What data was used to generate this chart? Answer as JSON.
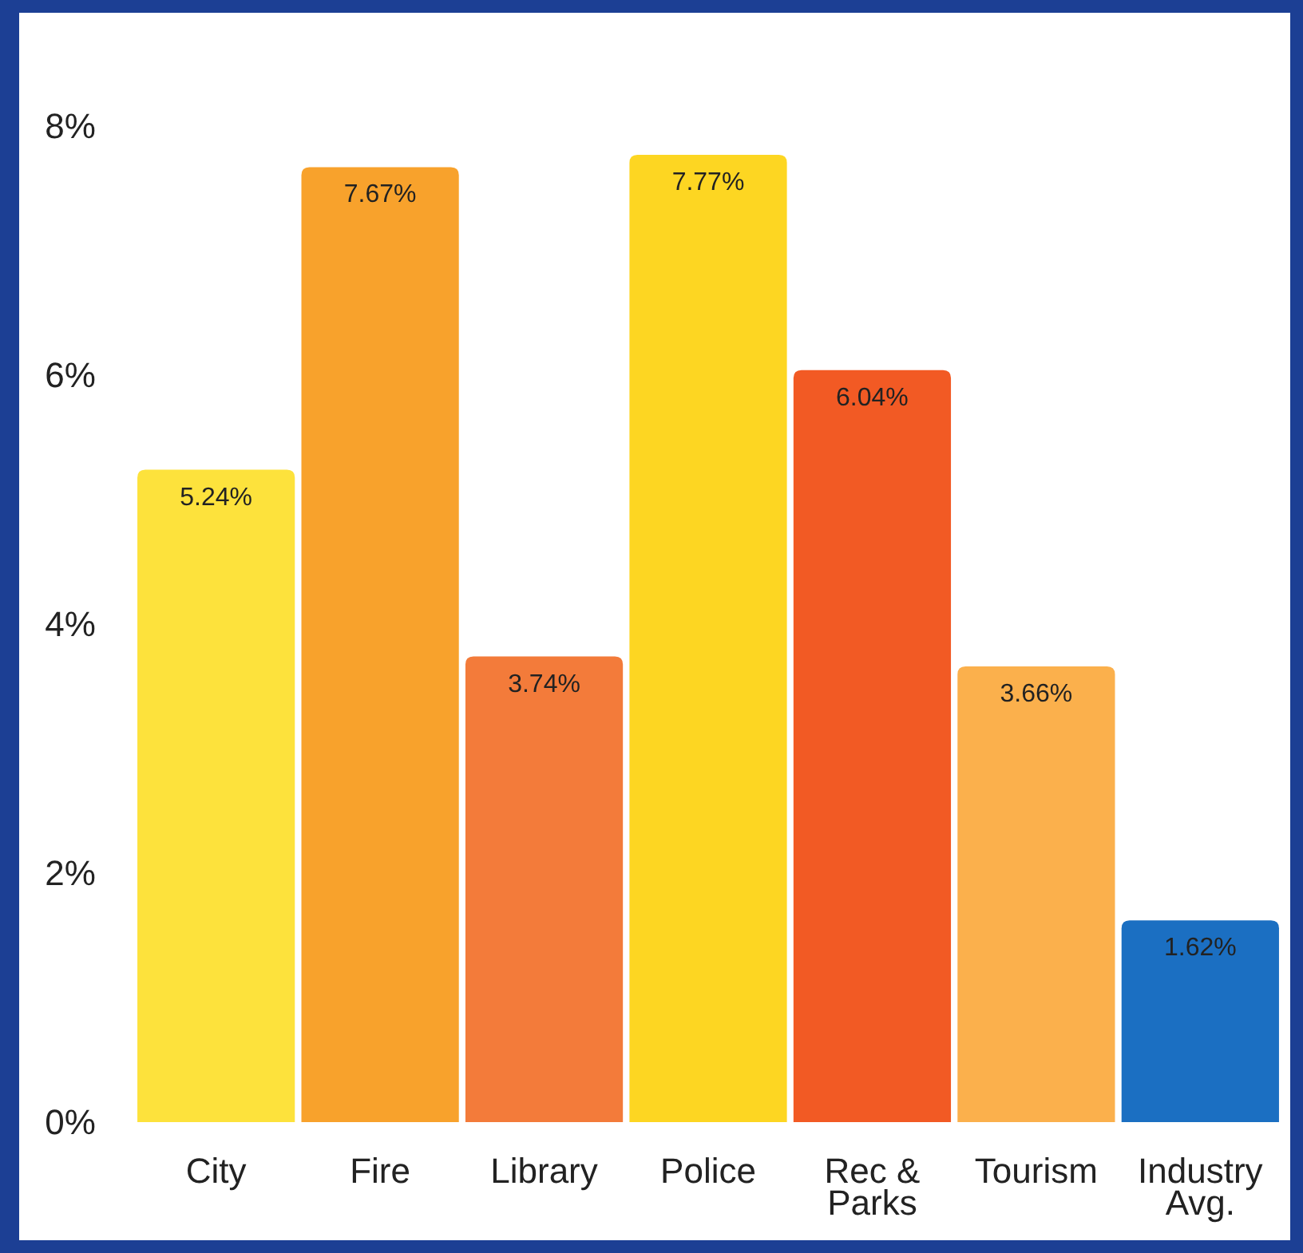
{
  "chart_data": {
    "type": "bar",
    "categories": [
      "City",
      "Fire",
      "Library",
      "Police",
      "Rec & Parks",
      "Tourism",
      "Industry Avg."
    ],
    "values": [
      5.24,
      7.67,
      3.74,
      7.77,
      6.04,
      3.66,
      1.62
    ],
    "colors": [
      "#fde23c",
      "#f8a22c",
      "#f37b3a",
      "#fdd622",
      "#f25a24",
      "#fbb04c",
      "#1b6fc2"
    ],
    "value_labels": [
      "5.24%",
      "7.67%",
      "3.74%",
      "7.77%",
      "6.04%",
      "3.66%",
      "1.62%"
    ],
    "ylim": [
      0,
      8
    ],
    "yticks": [
      {
        "value": 0,
        "label": "0%"
      },
      {
        "value": 2,
        "label": "2%"
      },
      {
        "value": 4,
        "label": "4%"
      },
      {
        "value": 6,
        "label": "6%"
      },
      {
        "value": 8,
        "label": "8%"
      }
    ],
    "grid": false
  }
}
